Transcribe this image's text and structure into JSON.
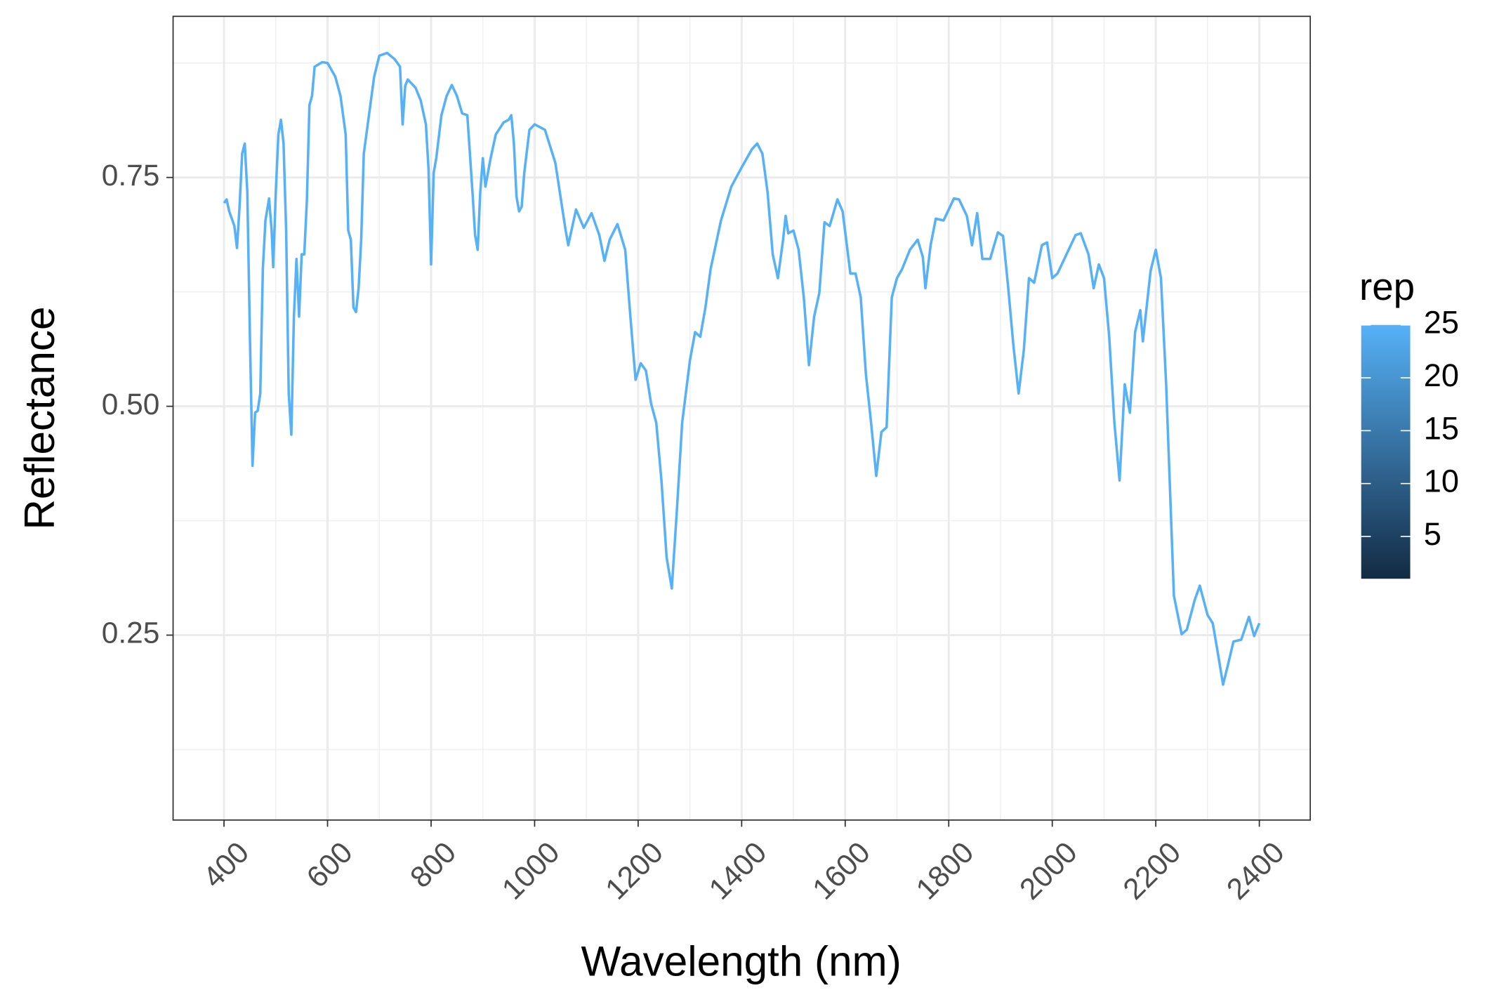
{
  "chart_data": {
    "type": "line",
    "xlabel": "Wavelength (nm)",
    "ylabel": "Reflectance",
    "x": [
      400,
      405,
      410,
      420,
      425,
      430,
      435,
      440,
      445,
      450,
      455,
      460,
      465,
      470,
      475,
      480,
      487,
      492,
      495,
      500,
      505,
      510,
      515,
      520,
      525,
      530,
      535,
      540,
      545,
      550,
      555,
      560,
      565,
      570,
      575,
      590,
      600,
      615,
      625,
      635,
      640,
      645,
      650,
      655,
      660,
      665,
      670,
      680,
      685,
      690,
      700,
      715,
      730,
      740,
      745,
      750,
      755,
      770,
      780,
      790,
      795,
      800,
      805,
      810,
      820,
      830,
      840,
      850,
      860,
      870,
      880,
      885,
      890,
      895,
      900,
      905,
      915,
      925,
      940,
      950,
      955,
      960,
      965,
      970,
      975,
      980,
      990,
      1000,
      1020,
      1040,
      1060,
      1065,
      1080,
      1095,
      1110,
      1125,
      1135,
      1145,
      1160,
      1175,
      1185,
      1195,
      1205,
      1215,
      1225,
      1235,
      1245,
      1255,
      1265,
      1275,
      1285,
      1300,
      1310,
      1320,
      1330,
      1340,
      1360,
      1380,
      1400,
      1420,
      1430,
      1440,
      1450,
      1460,
      1470,
      1480,
      1485,
      1490,
      1500,
      1510,
      1520,
      1530,
      1540,
      1550,
      1560,
      1570,
      1585,
      1595,
      1610,
      1620,
      1630,
      1640,
      1650,
      1660,
      1670,
      1680,
      1690,
      1700,
      1710,
      1725,
      1740,
      1750,
      1755,
      1765,
      1775,
      1790,
      1810,
      1820,
      1835,
      1845,
      1855,
      1865,
      1880,
      1895,
      1905,
      1915,
      1925,
      1935,
      1945,
      1955,
      1965,
      1980,
      1990,
      2000,
      2010,
      2025,
      2045,
      2055,
      2070,
      2080,
      2090,
      2100,
      2110,
      2120,
      2130,
      2140,
      2150,
      2160,
      2170,
      2175,
      2190,
      2200,
      2210,
      2220,
      2235,
      2250,
      2260,
      2275,
      2285,
      2300,
      2310,
      2320,
      2330,
      2340,
      2350,
      2365,
      2380,
      2390,
      2400
    ],
    "series": [
      {
        "color": "#56B1F7",
        "values": [
          0.722,
          0.726,
          0.713,
          0.697,
          0.673,
          0.718,
          0.776,
          0.787,
          0.734,
          0.577,
          0.435,
          0.493,
          0.495,
          0.514,
          0.65,
          0.703,
          0.727,
          0.692,
          0.652,
          0.734,
          0.797,
          0.813,
          0.787,
          0.692,
          0.514,
          0.469,
          0.598,
          0.661,
          0.598,
          0.666,
          0.666,
          0.724,
          0.829,
          0.839,
          0.871,
          0.876,
          0.875,
          0.86,
          0.839,
          0.797,
          0.692,
          0.682,
          0.608,
          0.603,
          0.629,
          0.682,
          0.776,
          0.818,
          0.839,
          0.86,
          0.883,
          0.886,
          0.879,
          0.871,
          0.808,
          0.85,
          0.857,
          0.848,
          0.834,
          0.808,
          0.76,
          0.655,
          0.755,
          0.771,
          0.818,
          0.839,
          0.851,
          0.839,
          0.82,
          0.818,
          0.734,
          0.687,
          0.671,
          0.734,
          0.771,
          0.74,
          0.771,
          0.797,
          0.81,
          0.813,
          0.818,
          0.787,
          0.729,
          0.713,
          0.718,
          0.755,
          0.802,
          0.808,
          0.802,
          0.766,
          0.692,
          0.676,
          0.715,
          0.695,
          0.711,
          0.687,
          0.659,
          0.682,
          0.699,
          0.671,
          0.598,
          0.529,
          0.547,
          0.539,
          0.503,
          0.482,
          0.419,
          0.335,
          0.301,
          0.388,
          0.482,
          0.55,
          0.581,
          0.576,
          0.608,
          0.65,
          0.703,
          0.74,
          0.761,
          0.781,
          0.787,
          0.776,
          0.734,
          0.666,
          0.64,
          0.682,
          0.708,
          0.689,
          0.692,
          0.671,
          0.619,
          0.545,
          0.598,
          0.624,
          0.701,
          0.697,
          0.726,
          0.713,
          0.645,
          0.645,
          0.619,
          0.535,
          0.482,
          0.424,
          0.472,
          0.477,
          0.619,
          0.64,
          0.65,
          0.671,
          0.682,
          0.663,
          0.629,
          0.676,
          0.705,
          0.703,
          0.727,
          0.726,
          0.708,
          0.676,
          0.711,
          0.661,
          0.661,
          0.69,
          0.686,
          0.629,
          0.566,
          0.514,
          0.561,
          0.64,
          0.635,
          0.676,
          0.679,
          0.64,
          0.645,
          0.663,
          0.687,
          0.689,
          0.666,
          0.629,
          0.655,
          0.64,
          0.576,
          0.482,
          0.419,
          0.524,
          0.493,
          0.581,
          0.605,
          0.571,
          0.648,
          0.671,
          0.64,
          0.524,
          0.293,
          0.251,
          0.256,
          0.288,
          0.304,
          0.272,
          0.263,
          0.23,
          0.196,
          0.219,
          0.243,
          0.245,
          0.27,
          0.249,
          0.263
        ]
      }
    ],
    "xlim": [
      301.6,
      2498.4
    ],
    "xticks": [
      400,
      600,
      800,
      1000,
      1200,
      1400,
      1600,
      1800,
      2000,
      2200,
      2400
    ],
    "ylim": [
      0.048,
      0.926
    ],
    "yticks": [
      0.25,
      {
        "value": 0.5,
        "label": "0.50"
      },
      0.75
    ],
    "grid": true,
    "colorbar": {
      "title": "rep",
      "lim": [
        1,
        25
      ],
      "ticks": [
        5,
        10,
        15,
        20,
        25
      ],
      "colors": [
        "#132B43",
        "#56B1F7"
      ]
    }
  }
}
